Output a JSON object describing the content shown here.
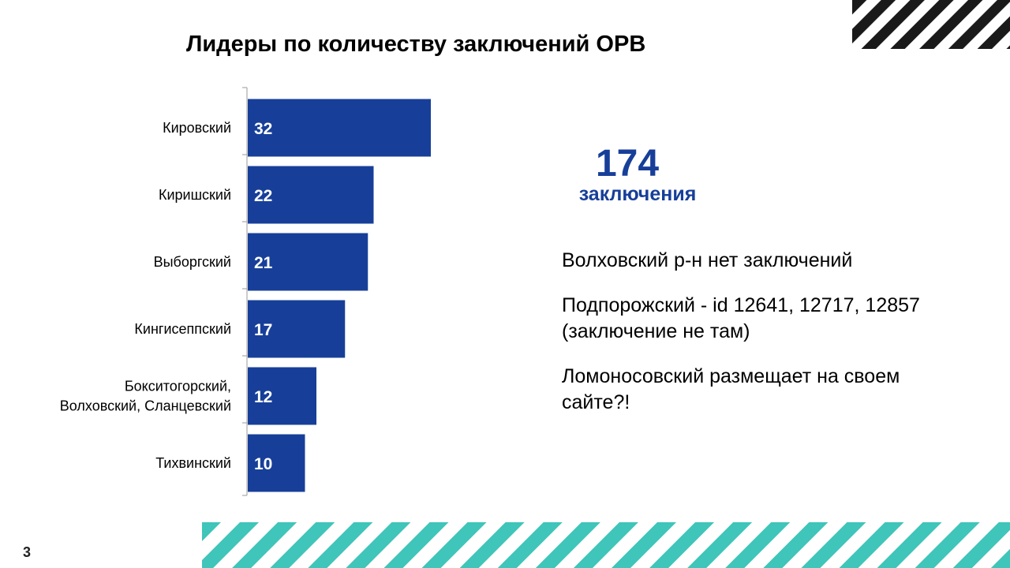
{
  "title": "Лидеры по количеству заключений ОРВ",
  "page_number": "3",
  "summary": {
    "total_value": "174",
    "total_label": "заключения"
  },
  "notes": [
    "Волховский р-н нет заключений",
    "Подпорожский  - id 12641, 12717, 12857 (заключение не там)",
    "Ломоносовский размещает на своем сайте?!"
  ],
  "colors": {
    "bar": "#173f99",
    "accent_text": "#173f99",
    "axis": "#999999",
    "stripe_dark": "#1a1a1a",
    "stripe_teal": "#3fc5b9"
  },
  "chart_data": {
    "type": "bar",
    "orientation": "horizontal",
    "categories": [
      "Кировский",
      "Киришский",
      "Выборгский",
      "Кингисеппский",
      "Бокситогорский,\nВолховский,  Сланцевский",
      "Тихвинский"
    ],
    "values": [
      32,
      22,
      21,
      17,
      12,
      10
    ],
    "data_labels": [
      "32",
      "22",
      "21",
      "17",
      "12",
      "10"
    ],
    "xlim": [
      0,
      32
    ],
    "grid": false,
    "legend": "none"
  }
}
